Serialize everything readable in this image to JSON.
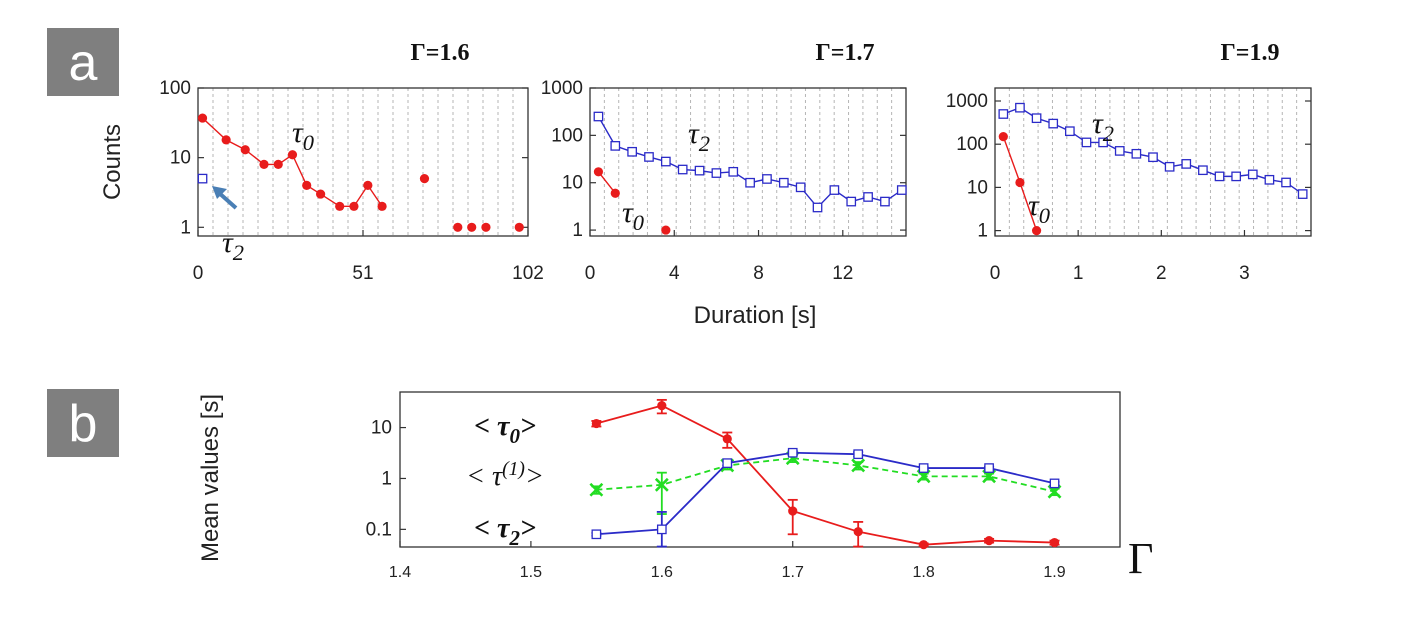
{
  "panel_labels": [
    "a",
    "b"
  ],
  "shared": {
    "xlabel": "Duration   [s]",
    "ylabel_a": "Counts",
    "ylabel_b": "Mean values  [s]",
    "gamma_axis_symbol": "Γ"
  },
  "colors": {
    "tau0": "#e81c1c",
    "tau2": "#2b2bc8",
    "tau1": "#22dd22",
    "arrow": "#4a7fb5"
  },
  "chart_data": [
    {
      "type": "scatter",
      "title": "Γ=1.6",
      "yscale": "log",
      "xlim": [
        0,
        102
      ],
      "ylim": [
        0.75,
        100
      ],
      "xticks": [
        0,
        51,
        102
      ],
      "xtick_labels": [
        "0",
        "51",
        "102"
      ],
      "yticks": [
        1,
        10,
        100
      ],
      "ytick_labels": [
        "1",
        "10",
        "100"
      ],
      "grid": "vertical-dashed",
      "series": [
        {
          "key": "tau0",
          "label": "τ",
          "sub": "0",
          "marker": "filled-circle",
          "color": "#e81c1c",
          "x": [
            1.4,
            8.7,
            14.6,
            20.4,
            24.8,
            29.2,
            33.6,
            37.9,
            43.8,
            48.2,
            52.5,
            56.9,
            61.3,
            70,
            80.3,
            84.6,
            89,
            99.3
          ],
          "y": [
            37,
            18,
            13,
            8,
            8,
            11,
            4,
            3,
            2,
            2,
            4,
            2,
            null,
            5,
            1,
            1,
            1,
            1
          ],
          "line": true,
          "line_until": 12
        },
        {
          "key": "tau2",
          "label": "τ",
          "sub": "2",
          "marker": "open-square",
          "color": "#2b2bc8",
          "x": [
            1.4
          ],
          "y": [
            5
          ],
          "line": false
        }
      ]
    },
    {
      "type": "line",
      "title": "Γ=1.7",
      "yscale": "log",
      "xlim": [
        0,
        15
      ],
      "ylim": [
        0.75,
        1000
      ],
      "xticks": [
        0,
        4,
        8,
        12
      ],
      "xtick_labels": [
        "0",
        "4",
        "8",
        "12"
      ],
      "yticks": [
        1,
        10,
        100,
        1000
      ],
      "ytick_labels": [
        "1",
        "10",
        "100",
        "1000"
      ],
      "grid": "vertical-dashed",
      "series": [
        {
          "key": "tau2",
          "label": "τ",
          "sub": "2",
          "marker": "open-square",
          "color": "#2b2bc8",
          "x": [
            0.4,
            1.2,
            2,
            2.8,
            3.6,
            4.4,
            5.2,
            6,
            6.8,
            7.6,
            8.4,
            9.2,
            10,
            10.8,
            11.6,
            12.4,
            13.2,
            14,
            14.8
          ],
          "y": [
            250,
            60,
            45,
            35,
            28,
            19,
            18,
            16,
            17,
            10,
            12,
            10,
            8,
            3,
            7,
            4,
            5,
            4,
            7
          ],
          "line": true
        },
        {
          "key": "tau0",
          "label": "τ",
          "sub": "0",
          "marker": "filled-circle",
          "color": "#e81c1c",
          "x": [
            0.4,
            1.2,
            3.6
          ],
          "y": [
            17,
            6,
            1
          ],
          "line": true,
          "line_until": 1
        }
      ]
    },
    {
      "type": "line",
      "title": "Γ=1.9",
      "yscale": "log",
      "xlim": [
        0,
        3.8
      ],
      "ylim": [
        0.75,
        2000
      ],
      "xticks": [
        0,
        1,
        2,
        3
      ],
      "xtick_labels": [
        "0",
        "1",
        "2",
        "3"
      ],
      "yticks": [
        1,
        10,
        100,
        1000
      ],
      "ytick_labels": [
        "1",
        "10",
        "100",
        "1000"
      ],
      "grid": "vertical-dashed",
      "series": [
        {
          "key": "tau2",
          "label": "τ",
          "sub": "2",
          "marker": "open-square",
          "color": "#2b2bc8",
          "x": [
            0.1,
            0.3,
            0.5,
            0.7,
            0.9,
            1.1,
            1.3,
            1.5,
            1.7,
            1.9,
            2.1,
            2.3,
            2.5,
            2.7,
            2.9,
            3.1,
            3.3,
            3.5,
            3.7
          ],
          "y": [
            500,
            700,
            400,
            300,
            200,
            110,
            110,
            70,
            60,
            50,
            30,
            35,
            25,
            18,
            18,
            20,
            15,
            13,
            7
          ],
          "line": true
        },
        {
          "key": "tau0",
          "label": "τ",
          "sub": "0",
          "marker": "filled-circle",
          "color": "#e81c1c",
          "x": [
            0.1,
            0.3,
            0.5
          ],
          "y": [
            150,
            13,
            1
          ],
          "line": true
        }
      ]
    },
    {
      "type": "line",
      "yscale": "log",
      "xlim": [
        1.4,
        1.95
      ],
      "ylim": [
        0.045,
        50
      ],
      "xticks": [
        1.4,
        1.5,
        1.6,
        1.7,
        1.8,
        1.9
      ],
      "xtick_labels": [
        "1.4",
        "1.5",
        "1.6",
        "1.7",
        "1.8",
        "1.9"
      ],
      "yticks": [
        0.1,
        1,
        10
      ],
      "ytick_labels": [
        "0.1",
        "1",
        "10"
      ],
      "x": [
        1.55,
        1.6,
        1.65,
        1.7,
        1.75,
        1.8,
        1.85,
        1.9
      ],
      "series": [
        {
          "key": "tau0",
          "label": "< τ",
          "sub": "0",
          "label_suffix": ">",
          "marker": "filled-circle",
          "color": "#e81c1c",
          "dashed": false,
          "values": [
            12,
            27,
            6,
            0.23,
            0.09,
            0.05,
            0.06,
            0.055
          ],
          "err": [
            1.5,
            8,
            2,
            0.15,
            0.05,
            0.003,
            0.005,
            0.005
          ]
        },
        {
          "key": "tau1",
          "label": "< τ",
          "sup": "(1)",
          "label_suffix": ">",
          "marker": "x",
          "color": "#22dd22",
          "dashed": true,
          "values": [
            0.6,
            0.75,
            1.8,
            2.5,
            1.8,
            1.1,
            1.1,
            0.55
          ],
          "err": [
            0.1,
            0.55,
            0.3,
            0.4,
            0.3,
            0.15,
            0.15,
            0.08
          ]
        },
        {
          "key": "tau2",
          "label": "< τ",
          "sub": "2",
          "label_suffix": ">",
          "marker": "open-square",
          "color": "#2b2bc8",
          "dashed": false,
          "values": [
            0.08,
            0.1,
            2,
            3.2,
            3,
            1.6,
            1.6,
            0.8
          ],
          "err": [
            0.005,
            0.12,
            0.2,
            0.3,
            0.3,
            0.1,
            0.1,
            0.06
          ]
        }
      ]
    }
  ]
}
